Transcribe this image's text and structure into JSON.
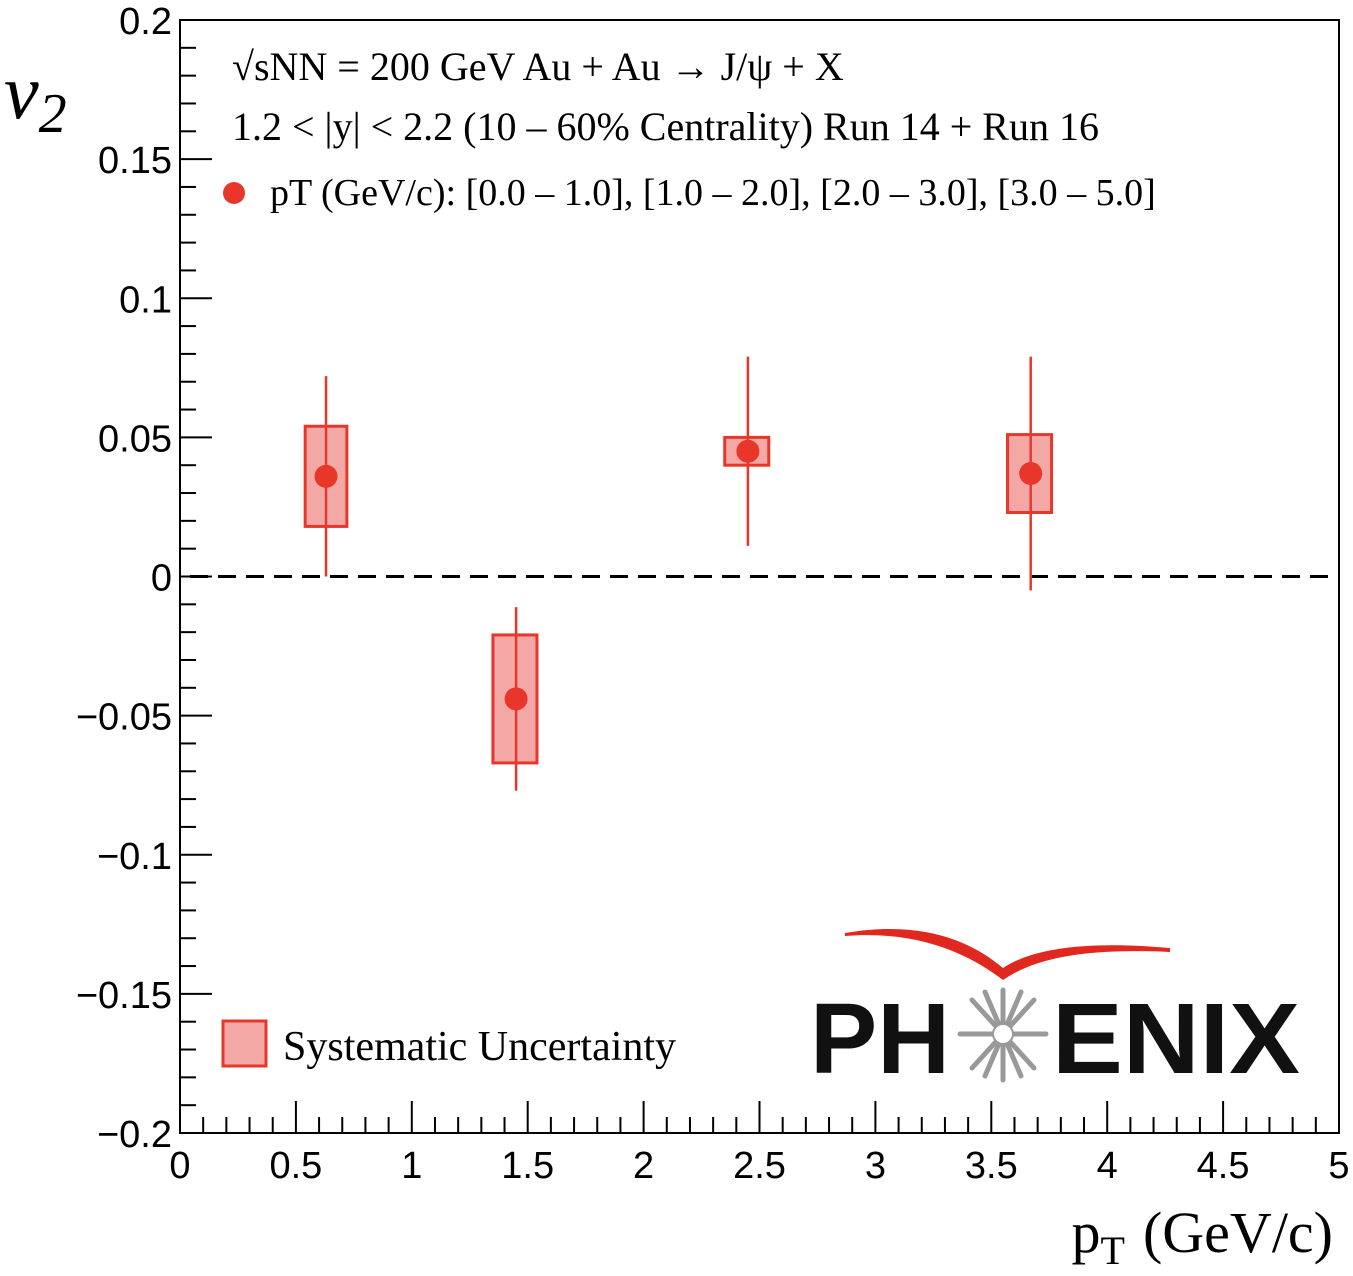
{
  "chart_data": {
    "type": "scatter",
    "title": "",
    "xlabel": "p",
    "xlabel_sub": "T",
    "xlabel_unit": "(GeV/c)",
    "ylabel": "v",
    "ylabel_sub": "2",
    "xlim": [
      0,
      5
    ],
    "ylim": [
      -0.2,
      0.2
    ],
    "x_ticks": [
      0,
      0.5,
      1,
      1.5,
      2,
      2.5,
      3,
      3.5,
      4,
      4.5,
      5
    ],
    "x_tick_labels": [
      "0",
      "0.5",
      "1",
      "1.5",
      "2",
      "2.5",
      "3",
      "3.5",
      "4",
      "4.5",
      "5"
    ],
    "y_ticks": [
      -0.2,
      -0.15,
      -0.1,
      -0.05,
      0,
      0.05,
      0.1,
      0.15,
      0.2
    ],
    "y_tick_labels": [
      "−0.2",
      "−0.15",
      "−0.1",
      "−0.05",
      "0",
      "0.05",
      "0.1",
      "0.15",
      "0.2"
    ],
    "reference_line": {
      "y": 0,
      "style": "dashed"
    },
    "series": [
      {
        "name": "pT (GeV/c): [0.0 – 1.0], [1.0 – 2.0], [2.0 – 3.0], [3.0 – 5.0]",
        "color": "#e8372a",
        "points": [
          {
            "x": 0.63,
            "y": 0.036,
            "stat_low": 0.0,
            "stat_high": 0.072,
            "sys_low": 0.018,
            "sys_high": 0.054,
            "sys_x_low": 0.54,
            "sys_x_high": 0.72
          },
          {
            "x": 1.45,
            "y": -0.044,
            "stat_low": -0.077,
            "stat_high": -0.011,
            "sys_low": -0.067,
            "sys_high": -0.021,
            "sys_x_low": 1.35,
            "sys_x_high": 1.54
          },
          {
            "x": 2.45,
            "y": 0.045,
            "stat_low": 0.011,
            "stat_high": 0.079,
            "sys_low": 0.04,
            "sys_high": 0.05,
            "sys_x_low": 2.35,
            "sys_x_high": 2.54
          },
          {
            "x": 3.67,
            "y": 0.037,
            "stat_low": -0.005,
            "stat_high": 0.079,
            "sys_low": 0.023,
            "sys_high": 0.051,
            "sys_x_low": 3.57,
            "sys_x_high": 3.76
          }
        ]
      }
    ],
    "annotations": {
      "line1": "√sNN = 200 GeV Au + Au → J/ψ + X",
      "line2": "1.2 < |y| < 2.2 (10 – 60% Centrality) Run 14 + Run 16",
      "legend_marker_label": "pT (GeV/c): [0.0 – 1.0], [1.0 – 2.0], [2.0 – 3.0], [3.0 – 5.0]",
      "legend_sys_label": "Systematic Uncertainty"
    },
    "logo_text": "PHENIX"
  },
  "colors": {
    "marker": "#e8372a",
    "box_fill": "#f4a8a6",
    "box_stroke": "#e8372a",
    "logo_arc": "#e0281e",
    "logo_text": "#111111",
    "logo_star": "#999999"
  }
}
